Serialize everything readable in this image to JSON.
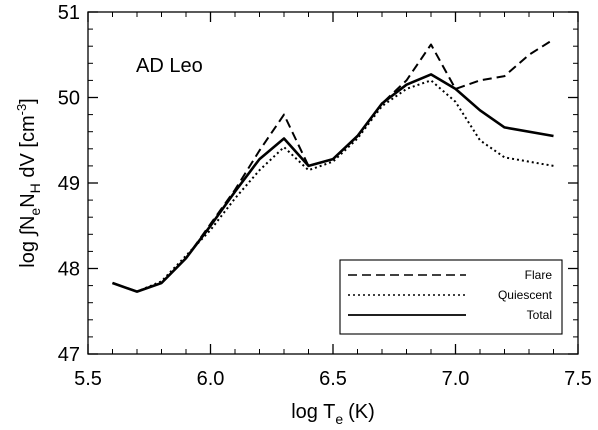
{
  "chart_data": {
    "type": "line",
    "annotation": "AD Leo",
    "xlabel": "log T",
    "xlabel_sub": "e",
    "xlabel_units": "(K)",
    "ylabel": {
      "prefix": "log ∫N",
      "sub1": "e",
      "mid": "N",
      "sub2": "H",
      "dv": " dV [cm",
      "sup": "-3",
      "close": "]"
    },
    "xlim": [
      5.5,
      7.5
    ],
    "ylim": [
      47,
      51
    ],
    "xticks": [
      5.5,
      6.0,
      6.5,
      7.0,
      7.5
    ],
    "xtick_labels": [
      "5.5",
      "6.0",
      "6.5",
      "7.0",
      "7.5"
    ],
    "yticks": [
      47,
      48,
      49,
      50,
      51
    ],
    "ytick_labels": [
      "47",
      "48",
      "49",
      "50",
      "51"
    ],
    "grid": false,
    "legend_position": "bottom-right",
    "series": [
      {
        "name": "Flare",
        "style": "dashed",
        "x": [
          5.6,
          5.7,
          5.8,
          5.9,
          6.0,
          6.1,
          6.2,
          6.3,
          6.4,
          6.5,
          6.6,
          6.7,
          6.8,
          6.9,
          7.0,
          7.1,
          7.2,
          7.3,
          7.4
        ],
        "y": [
          47.83,
          47.73,
          47.83,
          48.12,
          48.52,
          48.92,
          49.38,
          49.8,
          49.2,
          49.28,
          49.55,
          49.93,
          50.2,
          50.62,
          50.1,
          50.2,
          50.25,
          50.5,
          50.68
        ]
      },
      {
        "name": "Quiescent",
        "style": "dotted",
        "x": [
          5.6,
          5.7,
          5.8,
          5.9,
          6.0,
          6.1,
          6.2,
          6.3,
          6.4,
          6.5,
          6.6,
          6.7,
          6.8,
          6.9,
          7.0,
          7.1,
          7.2,
          7.4
        ],
        "y": [
          47.83,
          47.73,
          47.85,
          48.15,
          48.45,
          48.82,
          49.15,
          49.42,
          49.15,
          49.25,
          49.52,
          49.9,
          50.1,
          50.2,
          49.95,
          49.5,
          49.3,
          49.2
        ]
      },
      {
        "name": "Total",
        "style": "solid",
        "x": [
          5.6,
          5.7,
          5.8,
          5.9,
          6.0,
          6.1,
          6.2,
          6.3,
          6.4,
          6.5,
          6.6,
          6.7,
          6.8,
          6.9,
          7.0,
          7.1,
          7.2,
          7.4
        ],
        "y": [
          47.83,
          47.73,
          47.83,
          48.12,
          48.5,
          48.9,
          49.28,
          49.52,
          49.2,
          49.28,
          49.55,
          49.93,
          50.15,
          50.27,
          50.1,
          49.85,
          49.65,
          49.55
        ]
      }
    ]
  }
}
